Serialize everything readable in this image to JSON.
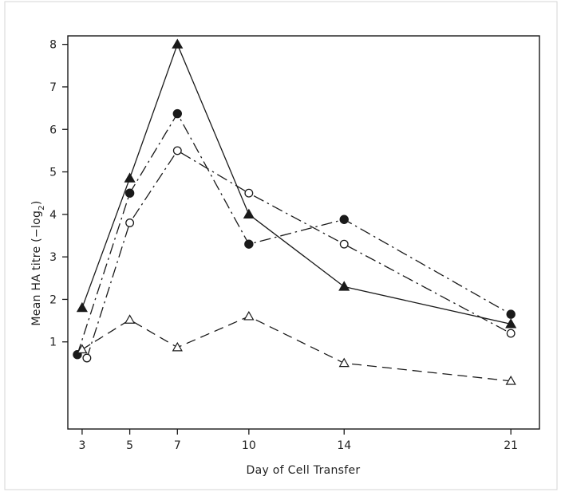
{
  "chart_data": {
    "type": "line",
    "xlabel": "Day of Cell Transfer",
    "ylabel_main": "Mean HA titre (−log",
    "ylabel_sub": "2",
    "ylabel_close": ")",
    "xlim": [
      2.4,
      22.2
    ],
    "ylim": [
      -1.05,
      8.2
    ],
    "x_ticks": [
      3,
      5,
      7,
      10,
      14,
      21
    ],
    "x_tick_labels": [
      "3",
      "5",
      "7",
      "10",
      "14",
      "21"
    ],
    "y_ticks": [
      1,
      2,
      3,
      4,
      5,
      6,
      7,
      8
    ],
    "y_tick_labels": [
      "1",
      "2",
      "3",
      "4",
      "5",
      "6",
      "7",
      "8"
    ],
    "grid": false,
    "series": [
      {
        "marker": "filled-triangle",
        "line_style": "solid",
        "color": "#1a1a1a",
        "x": [
          3,
          5,
          7,
          10,
          14,
          21
        ],
        "y": [
          1.8,
          4.85,
          8.0,
          4.0,
          2.3,
          1.42
        ]
      },
      {
        "marker": "filled-circle",
        "line_style": "dash-dot",
        "color": "#1a1a1a",
        "x": [
          2.8,
          5,
          7,
          10,
          14,
          21
        ],
        "y": [
          0.7,
          4.5,
          6.37,
          3.3,
          3.88,
          1.65
        ]
      },
      {
        "marker": "open-circle",
        "line_style": "dash-dot",
        "color": "#1a1a1a",
        "x": [
          3.2,
          5,
          7,
          10,
          14,
          21
        ],
        "y": [
          0.62,
          3.8,
          5.5,
          4.5,
          3.3,
          1.2
        ]
      },
      {
        "marker": "open-triangle",
        "line_style": "dashed",
        "color": "#1a1a1a",
        "x": [
          3,
          5,
          7,
          10,
          14,
          21
        ],
        "y": [
          0.82,
          1.52,
          0.87,
          1.6,
          0.5,
          0.08
        ]
      }
    ]
  }
}
